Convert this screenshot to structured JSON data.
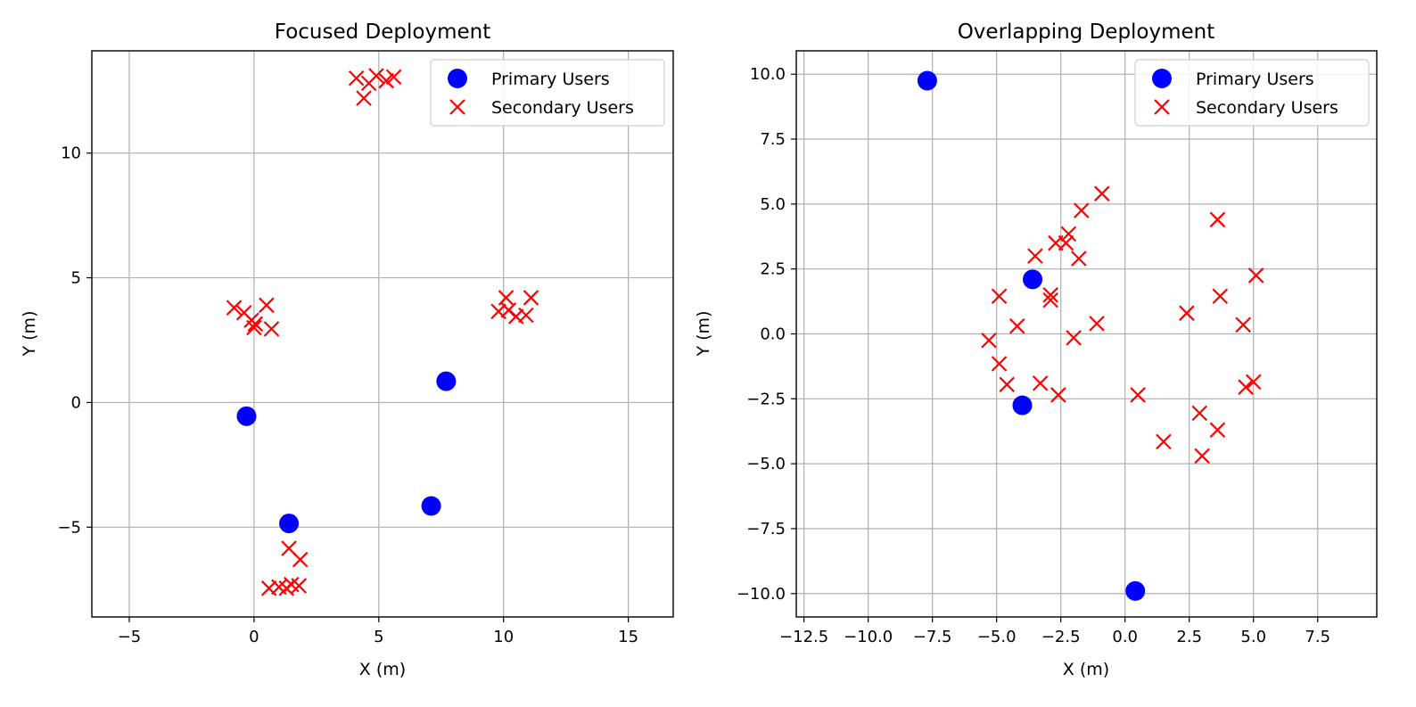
{
  "colors": {
    "primary": "#0000ff",
    "secondary": "#ff0000",
    "grid": "#b0b0b0"
  },
  "chart_data": [
    {
      "type": "scatter",
      "title": "Focused Deployment",
      "xlabel": "X (m)",
      "ylabel": "Y (m)",
      "xlim": [
        -6.5,
        16.8
      ],
      "ylim": [
        -8.6,
        14.1
      ],
      "xticks": [
        -5,
        0,
        5,
        10,
        15
      ],
      "xtick_labels": [
        "−5",
        "0",
        "5",
        "10",
        "15"
      ],
      "yticks": [
        -5,
        0,
        5,
        10
      ],
      "ytick_labels": [
        "−5",
        "0",
        "5",
        "10"
      ],
      "grid": true,
      "legend_position": "top-right",
      "series": [
        {
          "name": "Primary Users",
          "marker": "circle",
          "color": "#0000ff",
          "points": [
            [
              -0.3,
              -0.55
            ],
            [
              1.4,
              -4.85
            ],
            [
              7.7,
              0.85
            ],
            [
              7.1,
              -4.15
            ]
          ]
        },
        {
          "name": "Secondary Users",
          "marker": "x",
          "color": "#ff0000",
          "points": [
            [
              4.1,
              13.0
            ],
            [
              4.6,
              12.8
            ],
            [
              4.9,
              13.1
            ],
            [
              5.3,
              12.9
            ],
            [
              5.6,
              13.05
            ],
            [
              4.4,
              12.2
            ],
            [
              -0.8,
              3.8
            ],
            [
              -0.4,
              3.6
            ],
            [
              -0.1,
              3.3
            ],
            [
              0.0,
              3.0
            ],
            [
              0.05,
              3.15
            ],
            [
              0.5,
              3.9
            ],
            [
              0.7,
              2.95
            ],
            [
              9.8,
              3.65
            ],
            [
              10.1,
              4.2
            ],
            [
              10.2,
              3.7
            ],
            [
              10.5,
              3.45
            ],
            [
              10.9,
              3.5
            ],
            [
              11.1,
              4.2
            ],
            [
              1.4,
              -5.85
            ],
            [
              1.85,
              -6.3
            ],
            [
              0.6,
              -7.45
            ],
            [
              1.0,
              -7.4
            ],
            [
              1.3,
              -7.45
            ],
            [
              1.5,
              -7.3
            ],
            [
              1.8,
              -7.35
            ]
          ]
        }
      ]
    },
    {
      "type": "scatter",
      "title": "Overlapping Deployment",
      "xlabel": "X (m)",
      "ylabel": "Y (m)",
      "xlim": [
        -12.8,
        9.8
      ],
      "ylim": [
        -10.9,
        10.9
      ],
      "xticks": [
        -12.5,
        -10.0,
        -7.5,
        -5.0,
        -2.5,
        0.0,
        2.5,
        5.0,
        7.5
      ],
      "xtick_labels": [
        "−12.5",
        "−10.0",
        "−7.5",
        "−5.0",
        "−2.5",
        "0.0",
        "2.5",
        "5.0",
        "7.5"
      ],
      "yticks": [
        -10.0,
        -7.5,
        -5.0,
        -2.5,
        0.0,
        2.5,
        5.0,
        7.5,
        10.0
      ],
      "ytick_labels": [
        "−10.0",
        "−7.5",
        "−5.0",
        "−2.5",
        "0.0",
        "2.5",
        "5.0",
        "7.5",
        "10.0"
      ],
      "grid": true,
      "legend_position": "top-right",
      "series": [
        {
          "name": "Primary Users",
          "marker": "circle",
          "color": "#0000ff",
          "points": [
            [
              -7.7,
              9.75
            ],
            [
              -3.6,
              2.1
            ],
            [
              -4.0,
              -2.75
            ],
            [
              0.4,
              -9.9
            ]
          ]
        },
        {
          "name": "Secondary Users",
          "marker": "x",
          "color": "#ff0000",
          "points": [
            [
              -0.9,
              5.4
            ],
            [
              -1.7,
              4.75
            ],
            [
              -2.2,
              3.85
            ],
            [
              -2.7,
              3.5
            ],
            [
              -2.3,
              3.5
            ],
            [
              -3.5,
              3.0
            ],
            [
              -1.8,
              2.9
            ],
            [
              -2.9,
              1.5
            ],
            [
              -2.9,
              1.3
            ],
            [
              -4.9,
              1.45
            ],
            [
              -4.2,
              0.3
            ],
            [
              -1.1,
              0.4
            ],
            [
              -2.0,
              -0.15
            ],
            [
              -5.3,
              -0.25
            ],
            [
              -4.9,
              -1.15
            ],
            [
              -4.6,
              -1.95
            ],
            [
              -3.3,
              -1.9
            ],
            [
              -2.6,
              -2.35
            ],
            [
              0.5,
              -2.35
            ],
            [
              3.6,
              4.4
            ],
            [
              5.1,
              2.25
            ],
            [
              3.7,
              1.45
            ],
            [
              2.4,
              0.8
            ],
            [
              4.6,
              0.35
            ],
            [
              4.7,
              -2.05
            ],
            [
              5.0,
              -1.85
            ],
            [
              2.9,
              -3.05
            ],
            [
              3.6,
              -3.7
            ],
            [
              1.5,
              -4.15
            ],
            [
              3.0,
              -4.7
            ]
          ]
        }
      ]
    }
  ]
}
